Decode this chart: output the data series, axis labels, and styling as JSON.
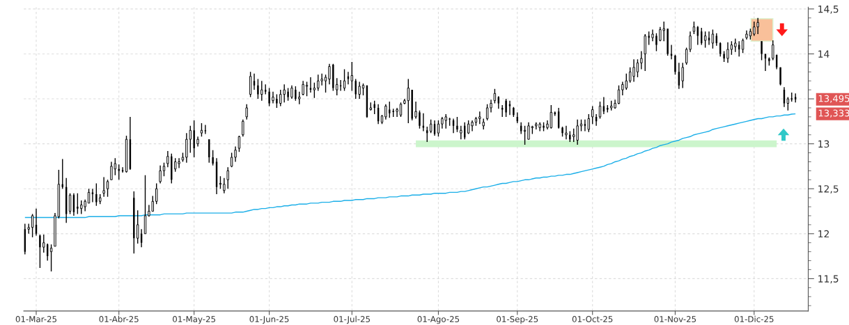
{
  "chart_data": {
    "type": "candlestick",
    "categories": [
      null,
      null,
      null,
      "01-Mar-25",
      null,
      null,
      null,
      null,
      null,
      null,
      null,
      null,
      null,
      null,
      null,
      null,
      null,
      null,
      null,
      null,
      null,
      null,
      null,
      null,
      null,
      "01-Abr-25",
      null,
      null,
      null,
      null,
      null,
      null,
      null,
      null,
      null,
      null,
      null,
      null,
      null,
      null,
      null,
      null,
      null,
      null,
      null,
      "01-May-25",
      null,
      null,
      null,
      null,
      null,
      null,
      null,
      null,
      null,
      null,
      null,
      null,
      null,
      null,
      null,
      null,
      null,
      null,
      null,
      "01-Jun-25",
      null,
      null,
      null,
      null,
      null,
      null,
      null,
      null,
      null,
      null,
      null,
      null,
      null,
      null,
      null,
      null,
      null,
      null,
      null,
      null,
      null,
      "01-Jul-25",
      null,
      null,
      null,
      null,
      null,
      null,
      null,
      null,
      null,
      null,
      null,
      null,
      null,
      null,
      null,
      null,
      null,
      null,
      null,
      null,
      null,
      null,
      "01-Ago-25",
      null,
      null,
      null,
      null,
      null,
      null,
      null,
      null,
      null,
      null,
      null,
      null,
      null,
      null,
      null,
      null,
      null,
      null,
      null,
      null,
      "01-Sep-25",
      null,
      null,
      null,
      null,
      null,
      null,
      null,
      null,
      null,
      null,
      null,
      null,
      null,
      null,
      null,
      null,
      null,
      null,
      null,
      "01-Oct-25",
      null,
      null,
      null,
      null,
      null,
      null,
      null,
      null,
      null,
      null,
      null,
      null,
      null,
      null,
      null,
      null,
      null,
      null,
      null,
      null,
      null,
      "01-Nov-25",
      null,
      null,
      null,
      null,
      null,
      null,
      null,
      null,
      null,
      null,
      null,
      null,
      null,
      null,
      null,
      null,
      null,
      null,
      null,
      null,
      "01-Dic-25",
      null,
      null,
      null,
      null,
      null,
      null,
      null,
      null,
      null,
      null,
      null
    ],
    "ohlc": [
      [
        12.05,
        12.11,
        11.77,
        11.8
      ],
      [
        12.05,
        12.11,
        12.0,
        12.07
      ],
      [
        12.07,
        12.22,
        11.96,
        12.2
      ],
      [
        12.1,
        12.28,
        11.98,
        12.0
      ],
      [
        11.98,
        11.99,
        11.62,
        11.85
      ],
      [
        11.85,
        11.99,
        11.79,
        11.9
      ],
      [
        11.88,
        11.89,
        11.7,
        11.75
      ],
      [
        11.8,
        11.88,
        11.58,
        11.84
      ],
      [
        11.86,
        12.23,
        11.86,
        12.2
      ],
      [
        12.19,
        12.71,
        12.17,
        12.55
      ],
      [
        12.55,
        12.83,
        12.5,
        12.52
      ],
      [
        12.52,
        12.62,
        12.12,
        12.22
      ],
      [
        12.25,
        12.45,
        12.22,
        12.43
      ],
      [
        12.43,
        12.45,
        12.2,
        12.24
      ],
      [
        12.3,
        12.45,
        12.22,
        12.28
      ],
      [
        12.28,
        12.37,
        12.22,
        12.32
      ],
      [
        12.3,
        12.38,
        12.25,
        12.36
      ],
      [
        12.34,
        12.5,
        12.34,
        12.46
      ],
      [
        12.46,
        12.5,
        12.35,
        12.44
      ],
      [
        12.44,
        12.56,
        12.31,
        12.35
      ],
      [
        12.36,
        12.44,
        12.33,
        12.4
      ],
      [
        12.45,
        12.63,
        12.41,
        12.48
      ],
      [
        12.5,
        12.6,
        12.41,
        12.58
      ],
      [
        12.6,
        12.8,
        12.6,
        12.75
      ],
      [
        12.72,
        12.84,
        12.65,
        12.78
      ],
      [
        12.72,
        12.77,
        12.6,
        12.7
      ],
      [
        12.7,
        12.74,
        12.68,
        12.7
      ],
      [
        12.69,
        13.09,
        12.68,
        13.05
      ],
      [
        13.05,
        13.3,
        12.71,
        12.72
      ],
      [
        12.4,
        12.47,
        11.78,
        11.95
      ],
      [
        11.95,
        12.26,
        11.89,
        12.1
      ],
      [
        12.0,
        12.05,
        11.85,
        11.9
      ],
      [
        12.0,
        12.65,
        12.0,
        12.2
      ],
      [
        12.2,
        12.32,
        12.19,
        12.25
      ],
      [
        12.25,
        12.42,
        12.25,
        12.36
      ],
      [
        12.36,
        12.56,
        12.33,
        12.5
      ],
      [
        12.58,
        12.76,
        12.56,
        12.7
      ],
      [
        12.7,
        12.79,
        12.64,
        12.75
      ],
      [
        12.78,
        12.92,
        12.74,
        12.86
      ],
      [
        12.86,
        12.89,
        12.56,
        12.6
      ],
      [
        12.72,
        12.84,
        12.69,
        12.8
      ],
      [
        12.78,
        12.84,
        12.73,
        12.8
      ],
      [
        12.82,
        12.9,
        12.8,
        12.85
      ],
      [
        12.85,
        13.12,
        12.79,
        13.05
      ],
      [
        13.05,
        13.2,
        12.9,
        13.15
      ],
      [
        13.15,
        13.26,
        12.85,
        12.95
      ],
      [
        13.0,
        13.08,
        12.97,
        13.05
      ],
      [
        13.12,
        13.23,
        13.08,
        13.15
      ],
      [
        13.15,
        13.21,
        13.11,
        13.14
      ],
      [
        13.05,
        13.05,
        12.79,
        12.85
      ],
      [
        12.85,
        12.93,
        12.76,
        12.78
      ],
      [
        12.8,
        12.84,
        12.44,
        12.52
      ],
      [
        12.55,
        12.64,
        12.5,
        12.56
      ],
      [
        12.48,
        12.62,
        12.45,
        12.55
      ],
      [
        12.6,
        12.74,
        12.5,
        12.7
      ],
      [
        12.75,
        12.9,
        12.74,
        12.85
      ],
      [
        12.85,
        12.97,
        12.8,
        12.93
      ],
      [
        12.95,
        13.09,
        12.91,
        13.08
      ],
      [
        13.1,
        13.27,
        13.08,
        13.25
      ],
      [
        13.3,
        13.44,
        13.27,
        13.4
      ],
      [
        13.55,
        13.8,
        13.52,
        13.75
      ],
      [
        13.7,
        13.78,
        13.6,
        13.65
      ],
      [
        13.65,
        13.72,
        13.5,
        13.55
      ],
      [
        13.55,
        13.7,
        13.48,
        13.6
      ],
      [
        13.6,
        13.66,
        13.55,
        13.58
      ],
      [
        13.58,
        13.62,
        13.42,
        13.45
      ],
      [
        13.48,
        13.58,
        13.45,
        13.52
      ],
      [
        13.5,
        13.55,
        13.4,
        13.45
      ],
      [
        13.45,
        13.6,
        13.42,
        13.55
      ],
      [
        13.55,
        13.66,
        13.46,
        13.6
      ],
      [
        13.58,
        13.62,
        13.48,
        13.52
      ],
      [
        13.52,
        13.65,
        13.5,
        13.62
      ],
      [
        13.6,
        13.64,
        13.48,
        13.5
      ],
      [
        13.5,
        13.58,
        13.44,
        13.52
      ],
      [
        13.55,
        13.7,
        13.54,
        13.66
      ],
      [
        13.64,
        13.69,
        13.53,
        13.65
      ],
      [
        13.62,
        13.74,
        13.57,
        13.6
      ],
      [
        13.6,
        13.68,
        13.51,
        13.62
      ],
      [
        13.62,
        13.77,
        13.59,
        13.7
      ],
      [
        13.7,
        13.78,
        13.65,
        13.72
      ],
      [
        13.7,
        13.77,
        13.57,
        13.74
      ],
      [
        13.72,
        13.89,
        13.66,
        13.86
      ],
      [
        13.88,
        13.89,
        13.59,
        13.62
      ],
      [
        13.6,
        13.73,
        13.54,
        13.66
      ],
      [
        13.65,
        13.71,
        13.59,
        13.64
      ],
      [
        13.62,
        13.83,
        13.59,
        13.7
      ],
      [
        13.75,
        13.8,
        13.66,
        13.72
      ],
      [
        13.7,
        13.91,
        13.59,
        13.76
      ],
      [
        13.7,
        13.72,
        13.5,
        13.55
      ],
      [
        13.55,
        13.69,
        13.5,
        13.64
      ],
      [
        13.62,
        13.67,
        13.54,
        13.65
      ],
      [
        13.65,
        13.65,
        13.29,
        13.3
      ],
      [
        13.38,
        13.46,
        13.37,
        13.4
      ],
      [
        13.44,
        13.48,
        13.33,
        13.4
      ],
      [
        13.4,
        13.44,
        13.22,
        13.25
      ],
      [
        13.24,
        13.32,
        13.22,
        13.31
      ],
      [
        13.3,
        13.44,
        13.27,
        13.42
      ],
      [
        13.38,
        13.47,
        13.29,
        13.34
      ],
      [
        13.36,
        13.39,
        13.3,
        13.36
      ],
      [
        13.36,
        13.4,
        13.3,
        13.38
      ],
      [
        13.32,
        13.46,
        13.3,
        13.44
      ],
      [
        13.45,
        13.5,
        13.44,
        13.48
      ],
      [
        13.48,
        13.72,
        13.23,
        13.62
      ],
      [
        13.6,
        13.6,
        13.26,
        13.28
      ],
      [
        13.3,
        13.47,
        13.28,
        13.36
      ],
      [
        13.35,
        13.37,
        13.17,
        13.2
      ],
      [
        13.2,
        13.34,
        13.14,
        13.18
      ],
      [
        13.15,
        13.19,
        13.02,
        13.12
      ],
      [
        13.14,
        13.27,
        13.12,
        13.22
      ],
      [
        13.22,
        13.26,
        13.09,
        13.11
      ],
      [
        13.12,
        13.26,
        13.08,
        13.22
      ],
      [
        13.22,
        13.3,
        13.17,
        13.28
      ],
      [
        13.26,
        13.33,
        13.17,
        13.3
      ],
      [
        13.28,
        13.29,
        13.2,
        13.27
      ],
      [
        13.26,
        13.28,
        13.12,
        13.2
      ],
      [
        13.2,
        13.3,
        13.13,
        13.16
      ],
      [
        13.12,
        13.2,
        13.05,
        13.15
      ],
      [
        13.2,
        13.24,
        13.05,
        13.07
      ],
      [
        13.12,
        13.26,
        13.11,
        13.22
      ],
      [
        13.2,
        13.26,
        13.14,
        13.24
      ],
      [
        13.24,
        13.3,
        13.2,
        13.28
      ],
      [
        13.28,
        13.36,
        13.22,
        13.3
      ],
      [
        13.2,
        13.28,
        13.16,
        13.24
      ],
      [
        13.28,
        13.44,
        13.26,
        13.4
      ],
      [
        13.4,
        13.49,
        13.35,
        13.45
      ],
      [
        13.48,
        13.61,
        13.45,
        13.56
      ],
      [
        13.52,
        13.53,
        13.39,
        13.45
      ],
      [
        13.4,
        13.43,
        13.3,
        13.38
      ],
      [
        13.48,
        13.5,
        13.3,
        13.35
      ],
      [
        13.44,
        13.48,
        13.32,
        13.42
      ],
      [
        13.4,
        13.41,
        13.3,
        13.32
      ],
      [
        13.3,
        13.35,
        13.23,
        13.25
      ],
      [
        13.2,
        13.24,
        13.11,
        13.14
      ],
      [
        13.14,
        13.2,
        12.99,
        13.15
      ],
      [
        13.05,
        13.24,
        13.05,
        13.2
      ],
      [
        13.18,
        13.2,
        13.11,
        13.19
      ],
      [
        13.2,
        13.24,
        13.16,
        13.22
      ],
      [
        13.18,
        13.24,
        13.14,
        13.22
      ],
      [
        13.2,
        13.24,
        13.14,
        13.18
      ],
      [
        13.18,
        13.26,
        13.16,
        13.22
      ],
      [
        13.18,
        13.43,
        13.17,
        13.35
      ],
      [
        13.35,
        13.36,
        13.31,
        13.33
      ],
      [
        13.36,
        13.4,
        13.17,
        13.18
      ],
      [
        13.18,
        13.19,
        13.08,
        13.12
      ],
      [
        13.1,
        13.2,
        13.05,
        13.12
      ],
      [
        13.1,
        13.14,
        13.02,
        13.05
      ],
      [
        13.08,
        13.17,
        13.02,
        13.1
      ],
      [
        13.04,
        13.27,
        12.99,
        13.2
      ],
      [
        13.2,
        13.27,
        13.14,
        13.22
      ],
      [
        13.22,
        13.27,
        13.14,
        13.2
      ],
      [
        13.16,
        13.33,
        13.13,
        13.28
      ],
      [
        13.3,
        13.42,
        13.22,
        13.38
      ],
      [
        13.3,
        13.33,
        13.2,
        13.25
      ],
      [
        13.3,
        13.47,
        13.28,
        13.42
      ],
      [
        13.42,
        13.52,
        13.33,
        13.36
      ],
      [
        13.4,
        13.43,
        13.35,
        13.38
      ],
      [
        13.4,
        13.48,
        13.37,
        13.42
      ],
      [
        13.4,
        13.49,
        13.39,
        13.45
      ],
      [
        13.45,
        13.65,
        13.44,
        13.6
      ],
      [
        13.6,
        13.69,
        13.54,
        13.66
      ],
      [
        13.62,
        13.78,
        13.6,
        13.7
      ],
      [
        13.7,
        13.85,
        13.68,
        13.8
      ],
      [
        13.75,
        13.94,
        13.69,
        13.85
      ],
      [
        13.8,
        13.94,
        13.74,
        13.9
      ],
      [
        13.9,
        14.03,
        13.83,
        13.95
      ],
      [
        14.0,
        14.22,
        13.81,
        14.2
      ],
      [
        14.2,
        14.25,
        14.1,
        14.18
      ],
      [
        14.18,
        14.27,
        14.14,
        14.22
      ],
      [
        14.2,
        14.23,
        14.03,
        14.1
      ],
      [
        14.15,
        14.3,
        14.14,
        14.27
      ],
      [
        14.26,
        14.36,
        14.14,
        14.28
      ],
      [
        14.28,
        14.28,
        13.98,
        14.0
      ],
      [
        14.0,
        14.1,
        13.94,
        13.98
      ],
      [
        13.98,
        13.99,
        13.77,
        13.8
      ],
      [
        13.8,
        13.9,
        13.61,
        13.65
      ],
      [
        13.7,
        13.9,
        13.62,
        13.85
      ],
      [
        13.9,
        14.07,
        13.88,
        14.05
      ],
      [
        14.05,
        14.25,
        14.02,
        14.2
      ],
      [
        14.25,
        14.36,
        14.22,
        14.3
      ],
      [
        14.3,
        14.31,
        14.1,
        14.2
      ],
      [
        14.25,
        14.29,
        14.1,
        14.12
      ],
      [
        14.15,
        14.25,
        14.07,
        14.2
      ],
      [
        14.18,
        14.25,
        14.1,
        14.15
      ],
      [
        14.12,
        14.27,
        14.06,
        14.22
      ],
      [
        14.2,
        14.23,
        14.09,
        14.12
      ],
      [
        14.12,
        14.13,
        13.97,
        14.0
      ],
      [
        14.0,
        14.03,
        13.91,
        13.95
      ],
      [
        13.95,
        14.13,
        13.9,
        14.05
      ],
      [
        14.05,
        14.14,
        13.99,
        14.1
      ],
      [
        14.08,
        14.17,
        14.02,
        14.12
      ],
      [
        14.1,
        14.14,
        13.97,
        14.05
      ],
      [
        14.05,
        14.17,
        14.01,
        14.15
      ],
      [
        14.18,
        14.26,
        14.16,
        14.22
      ],
      [
        14.2,
        14.28,
        14.16,
        14.25
      ],
      [
        14.22,
        14.36,
        14.2,
        14.3
      ],
      [
        14.3,
        14.4,
        14.22,
        14.35
      ],
      [
        14.14,
        14.14,
        13.93,
        14.0
      ],
      [
        14.0,
        14.0,
        13.81,
        13.95
      ],
      [
        13.95,
        13.96,
        13.87,
        13.92
      ],
      [
        13.95,
        14.15,
        13.93,
        14.1
      ],
      [
        13.99,
        13.99,
        13.83,
        13.85
      ],
      [
        13.85,
        13.85,
        13.65,
        13.66
      ],
      [
        13.6,
        13.63,
        13.41,
        13.45
      ],
      [
        13.45,
        13.52,
        13.37,
        13.5
      ],
      [
        13.5,
        13.57,
        13.47,
        13.5
      ],
      [
        13.52,
        13.56,
        13.46,
        13.495
      ]
    ],
    "series": [
      {
        "type": "line",
        "color": "#1aaee8",
        "values": [
          12.18,
          12.18,
          12.18,
          12.18,
          12.18,
          12.18,
          12.18,
          12.18,
          12.18,
          12.18,
          12.18,
          12.18,
          12.18,
          12.18,
          12.18,
          12.18,
          12.18,
          12.19,
          12.19,
          12.19,
          12.19,
          12.19,
          12.19,
          12.19,
          12.19,
          12.2,
          12.2,
          12.2,
          12.2,
          12.2,
          12.2,
          12.2,
          12.21,
          12.21,
          12.21,
          12.21,
          12.21,
          12.22,
          12.22,
          12.22,
          12.22,
          12.22,
          12.22,
          12.23,
          12.23,
          12.23,
          12.23,
          12.23,
          12.23,
          12.23,
          12.23,
          12.23,
          12.23,
          12.23,
          12.23,
          12.23,
          12.24,
          12.24,
          12.24,
          12.25,
          12.26,
          12.27,
          12.27,
          12.28,
          12.28,
          12.29,
          12.29,
          12.3,
          12.3,
          12.31,
          12.31,
          12.32,
          12.32,
          12.33,
          12.33,
          12.33,
          12.34,
          12.34,
          12.34,
          12.35,
          12.35,
          12.35,
          12.36,
          12.36,
          12.36,
          12.37,
          12.37,
          12.37,
          12.38,
          12.38,
          12.38,
          12.39,
          12.39,
          12.39,
          12.4,
          12.4,
          12.4,
          12.41,
          12.41,
          12.41,
          12.42,
          12.42,
          12.42,
          12.43,
          12.43,
          12.43,
          12.44,
          12.44,
          12.44,
          12.45,
          12.45,
          12.45,
          12.45,
          12.46,
          12.46,
          12.46,
          12.47,
          12.47,
          12.48,
          12.49,
          12.5,
          12.51,
          12.52,
          12.52,
          12.53,
          12.54,
          12.55,
          12.56,
          12.56,
          12.57,
          12.58,
          12.58,
          12.59,
          12.6,
          12.6,
          12.61,
          12.62,
          12.62,
          12.63,
          12.63,
          12.64,
          12.64,
          12.65,
          12.65,
          12.66,
          12.66,
          12.67,
          12.68,
          12.69,
          12.7,
          12.71,
          12.72,
          12.73,
          12.74,
          12.75,
          12.77,
          12.78,
          12.8,
          12.81,
          12.83,
          12.84,
          12.86,
          12.87,
          12.89,
          12.9,
          12.92,
          12.93,
          12.95,
          12.96,
          12.98,
          12.99,
          13.0,
          13.02,
          13.03,
          13.04,
          13.06,
          13.07,
          13.08,
          13.1,
          13.11,
          13.12,
          13.13,
          13.14,
          13.16,
          13.17,
          13.18,
          13.19,
          13.2,
          13.21,
          13.22,
          13.23,
          13.24,
          13.25,
          13.26,
          13.27,
          13.28,
          13.28,
          13.29,
          13.3,
          13.3,
          13.31,
          13.31,
          13.32,
          13.32,
          13.33,
          13.333
        ]
      },
      {
        "type": "line",
        "color": "#ccf5cc",
        "values": [
          null,
          null,
          null,
          null,
          null,
          null,
          null,
          null,
          null,
          null,
          null,
          null,
          null,
          null,
          null,
          null,
          null,
          null,
          null,
          null,
          null,
          null,
          null,
          null,
          null,
          null,
          null,
          null,
          null,
          null,
          null,
          null,
          null,
          null,
          null,
          null,
          null,
          null,
          null,
          null,
          null,
          null,
          null,
          null,
          null,
          null,
          null,
          null,
          null,
          null,
          null,
          null,
          null,
          null,
          null,
          null,
          null,
          null,
          null,
          null,
          null,
          null,
          null,
          null,
          null,
          null,
          null,
          null,
          null,
          null,
          null,
          null,
          null,
          null,
          null,
          null,
          null,
          null,
          null,
          null,
          null,
          null,
          null,
          null,
          null,
          null,
          null,
          null,
          null,
          null,
          null,
          null,
          null,
          null,
          null,
          null,
          null,
          null,
          null,
          null,
          null,
          null,
          null,
          null,
          13,
          13,
          13,
          13,
          13,
          13,
          13,
          13,
          13,
          13,
          13,
          13,
          13,
          13,
          13,
          13,
          13,
          13,
          13,
          13,
          13,
          13,
          13,
          13,
          13,
          13,
          13,
          13,
          13,
          13,
          13,
          13,
          13,
          13,
          13,
          13,
          13,
          13,
          13,
          13,
          13,
          13,
          13,
          13,
          13,
          13,
          13,
          13,
          13,
          13,
          13,
          13,
          13,
          13,
          13,
          13,
          13,
          13,
          13,
          13,
          13,
          13,
          13,
          13,
          13,
          13,
          13,
          13,
          13,
          13,
          13,
          13,
          13,
          13,
          13,
          13,
          13,
          13,
          13,
          13,
          13,
          13,
          13,
          13,
          13,
          13,
          13,
          13,
          13,
          13,
          13,
          13,
          13,
          13,
          13,
          13,
          13,
          null,
          null,
          null,
          null,
          null
        ]
      }
    ],
    "annotations": [
      "13,495",
      "13,333"
    ],
    "ylim": [
      11.14,
      14.52
    ],
    "yticks": [
      {
        "value": 11.5,
        "label": "11,5"
      },
      12,
      {
        "value": 12.5,
        "label": "12,5"
      },
      13,
      {
        "value": 13.5,
        "label": null
      },
      14,
      {
        "value": 14.5,
        "label": "14,5"
      }
    ],
    "grid": true
  }
}
